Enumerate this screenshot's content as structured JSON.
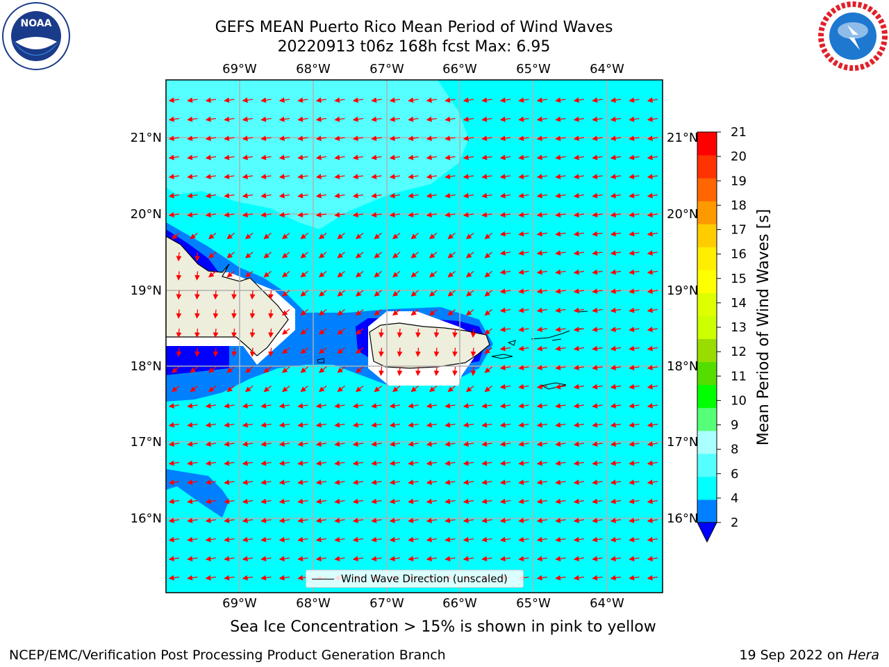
{
  "title": {
    "line1": "GEFS MEAN Puerto Rico Mean Period of Wind Waves",
    "line2": "20220913 t06z 168h fcst   Max: 6.95"
  },
  "logos": {
    "left": {
      "name": "NOAA",
      "icon": "noaa-logo",
      "text": "NOAA"
    },
    "right": {
      "name": "National Weather Service",
      "icon": "nws-logo"
    }
  },
  "map": {
    "lon_labels": [
      "69°W",
      "68°W",
      "67°W",
      "66°W",
      "65°W",
      "64°W"
    ],
    "lat_labels": [
      "21°N",
      "20°N",
      "19°N",
      "18°N",
      "17°N",
      "16°N"
    ],
    "lon_range": [
      -70.0,
      -63.25
    ],
    "lat_range": [
      15.0,
      21.75
    ],
    "gridlines": true,
    "colors": {
      "ocean_4_6": "#00ffff",
      "ocean_6_8": "#55ffff",
      "ocean_2_4": "#0080ff",
      "ocean_lt2": "#0000ff",
      "land": "#eeeedd",
      "arrows": "#ff0000"
    },
    "arrow_direction": "toward WSW (easterly wind waves)"
  },
  "legend": {
    "label": "Wind Wave Direction (unscaled)"
  },
  "colorbar": {
    "label": "Mean Period of Wind Waves [s]",
    "ticks": [
      "2",
      "4",
      "6",
      "8",
      "9",
      "10",
      "11",
      "12",
      "13",
      "14",
      "15",
      "16",
      "17",
      "18",
      "19",
      "20",
      "21"
    ],
    "colors": [
      "#0080ff",
      "#00ffff",
      "#55ffff",
      "#aaffff",
      "#55ff77",
      "#00ff00",
      "#55dd00",
      "#99dd00",
      "#ccff00",
      "#ddff00",
      "#ffff00",
      "#ffee00",
      "#ffcc00",
      "#ff9900",
      "#ff6600",
      "#ff3300",
      "#ff0000"
    ],
    "under_color": "#0000ff"
  },
  "notes": {
    "sea_ice": "Sea Ice Concentration > 15% is shown in pink to yellow",
    "producer": "NCEP/EMC/Verification Post Processing Product Generation Branch",
    "date": "19 Sep 2022 on ",
    "machine": "Hera"
  }
}
